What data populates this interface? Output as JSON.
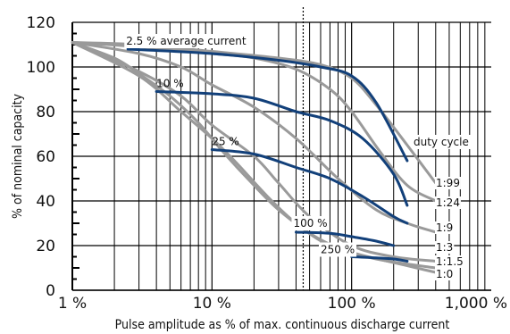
{
  "chart_data": {
    "type": "line",
    "title": "",
    "xlabel": "Pulse amplitude as % of max. continuous discharge current",
    "ylabel": "% of nominal capacity",
    "x_scale": "log",
    "xlim": [
      1,
      1000
    ],
    "ylim": [
      0,
      120
    ],
    "x_ticks": [
      "1 %",
      "10 %",
      "100 %",
      "1,000 %"
    ],
    "y_ticks": [
      "0",
      "20",
      "40",
      "60",
      "80",
      "100",
      "120"
    ],
    "grid": true,
    "reference_line_x": 45,
    "colors": {
      "duty_cycle_curves": "#9a9a9a",
      "average_current_curves": "#12407a",
      "grid": "#000000"
    },
    "duty_cycle_title": "duty cycle",
    "duty_cycle_curves": [
      {
        "name": "1:99",
        "points": [
          [
            1,
            111
          ],
          [
            3,
            110
          ],
          [
            10,
            107
          ],
          [
            30,
            104
          ],
          [
            60,
            101
          ],
          [
            100,
            95
          ],
          [
            150,
            83
          ],
          [
            250,
            65
          ],
          [
            400,
            48
          ]
        ]
      },
      {
        "name": "1:24",
        "points": [
          [
            1,
            111
          ],
          [
            3,
            109
          ],
          [
            10,
            106
          ],
          [
            20,
            104
          ],
          [
            40,
            99
          ],
          [
            70,
            90
          ],
          [
            100,
            80
          ],
          [
            160,
            62
          ],
          [
            250,
            47
          ],
          [
            400,
            40
          ]
        ]
      },
      {
        "name": "1:9",
        "points": [
          [
            1,
            111
          ],
          [
            3,
            106
          ],
          [
            6,
            100
          ],
          [
            10,
            92
          ],
          [
            20,
            82
          ],
          [
            40,
            68
          ],
          [
            80,
            50
          ],
          [
            150,
            36
          ],
          [
            250,
            30
          ],
          [
            400,
            26
          ]
        ]
      },
      {
        "name": "1:3",
        "points": [
          [
            1,
            111
          ],
          [
            3,
            98
          ],
          [
            6,
            87
          ],
          [
            10,
            74
          ],
          [
            20,
            60
          ],
          [
            30,
            48
          ],
          [
            50,
            33
          ],
          [
            100,
            20
          ],
          [
            200,
            15
          ],
          [
            400,
            13
          ]
        ]
      },
      {
        "name": "1:1.5",
        "points": [
          [
            1,
            111
          ],
          [
            3,
            96
          ],
          [
            6,
            80
          ],
          [
            10,
            68
          ],
          [
            15,
            57
          ],
          [
            25,
            42
          ],
          [
            40,
            30
          ],
          [
            70,
            20
          ],
          [
            150,
            14
          ],
          [
            400,
            10
          ]
        ]
      },
      {
        "name": "1:0",
        "points": [
          [
            1,
            111
          ],
          [
            2,
            104
          ],
          [
            3,
            97
          ],
          [
            5,
            87
          ],
          [
            8,
            75
          ],
          [
            12,
            62
          ],
          [
            18,
            50
          ],
          [
            30,
            36
          ],
          [
            55,
            24
          ],
          [
            100,
            17
          ],
          [
            250,
            11
          ],
          [
            400,
            8
          ]
        ]
      }
    ],
    "average_current_curves": [
      {
        "name": "2.5 % average current",
        "points": [
          [
            2.5,
            108
          ],
          [
            10,
            106
          ],
          [
            30,
            103
          ],
          [
            60,
            100
          ],
          [
            100,
            96
          ],
          [
            150,
            84
          ],
          [
            250,
            58
          ]
        ]
      },
      {
        "name": "10 %",
        "points": [
          [
            4,
            89
          ],
          [
            10,
            88
          ],
          [
            20,
            86
          ],
          [
            40,
            80
          ],
          [
            70,
            76
          ],
          [
            120,
            68
          ],
          [
            200,
            52
          ],
          [
            250,
            38
          ]
        ]
      },
      {
        "name": "25 %",
        "points": [
          [
            10,
            63
          ],
          [
            20,
            61
          ],
          [
            40,
            55
          ],
          [
            70,
            50
          ],
          [
            120,
            42
          ],
          [
            200,
            33
          ],
          [
            250,
            30
          ]
        ]
      },
      {
        "name": "100 %",
        "points": [
          [
            40,
            26
          ],
          [
            70,
            25.5
          ],
          [
            100,
            24
          ],
          [
            150,
            22
          ],
          [
            200,
            20
          ]
        ]
      },
      {
        "name": "250 %",
        "points": [
          [
            100,
            15
          ],
          [
            150,
            14.5
          ],
          [
            200,
            14
          ],
          [
            250,
            13
          ]
        ]
      }
    ]
  }
}
